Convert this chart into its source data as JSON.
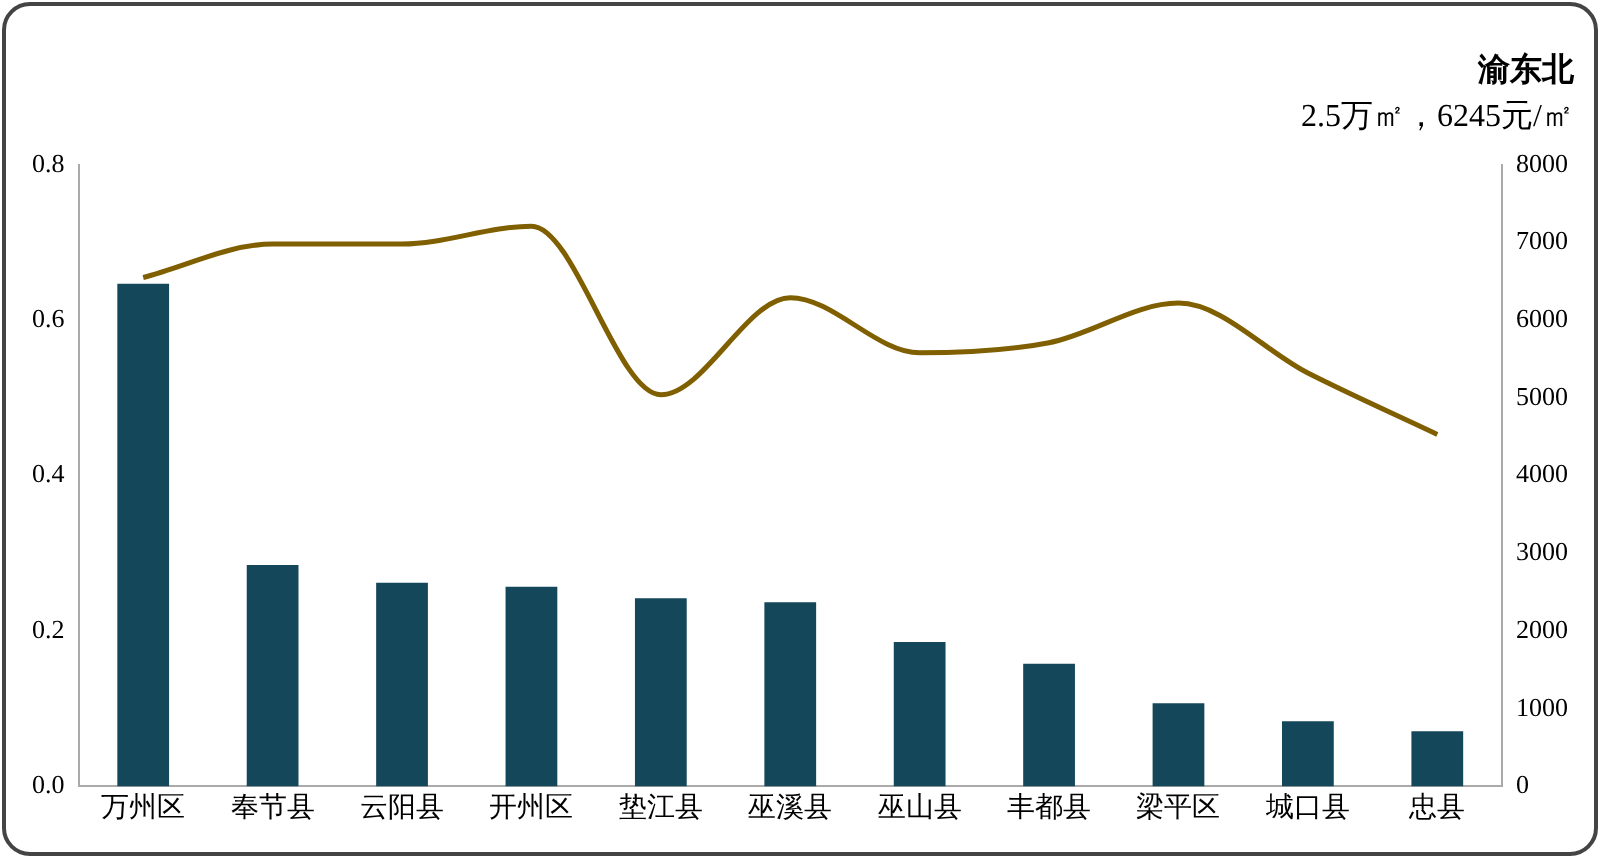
{
  "chart_data": {
    "type": "bar",
    "title": "渝东北",
    "subtitle": "2.5万㎡，6245元/㎡",
    "categories": [
      "万州区",
      "奉节县",
      "云阳县",
      "开州区",
      "垫江县",
      "巫溪县",
      "巫山县",
      "丰都县",
      "梁平区",
      "城口县",
      "忠县"
    ],
    "series": [
      {
        "color": "#15475a",
        "values": [
          0.647,
          0.285,
          0.262,
          0.257,
          0.242,
          0.237,
          0.186,
          0.158,
          0.107,
          0.084,
          0.071
        ]
      },
      {
        "type": "line",
        "axis": "y2",
        "color": "#7f5f00",
        "values": [
          6550,
          6980,
          6980,
          7210,
          5040,
          6290,
          5580,
          5710,
          6220,
          5320,
          4530
        ]
      }
    ],
    "ylim": [
      0,
      0.8
    ],
    "yticks": [
      {
        "value": 0,
        "label": "0.0"
      },
      0.2,
      0.4,
      0.6,
      0.8
    ],
    "y2lim": [
      0,
      8000
    ],
    "y2ticks": [
      0,
      1000,
      2000,
      3000,
      4000,
      5000,
      6000,
      7000,
      8000
    ],
    "grid": false,
    "legend": false,
    "marker": "none",
    "line_style": "solid"
  }
}
